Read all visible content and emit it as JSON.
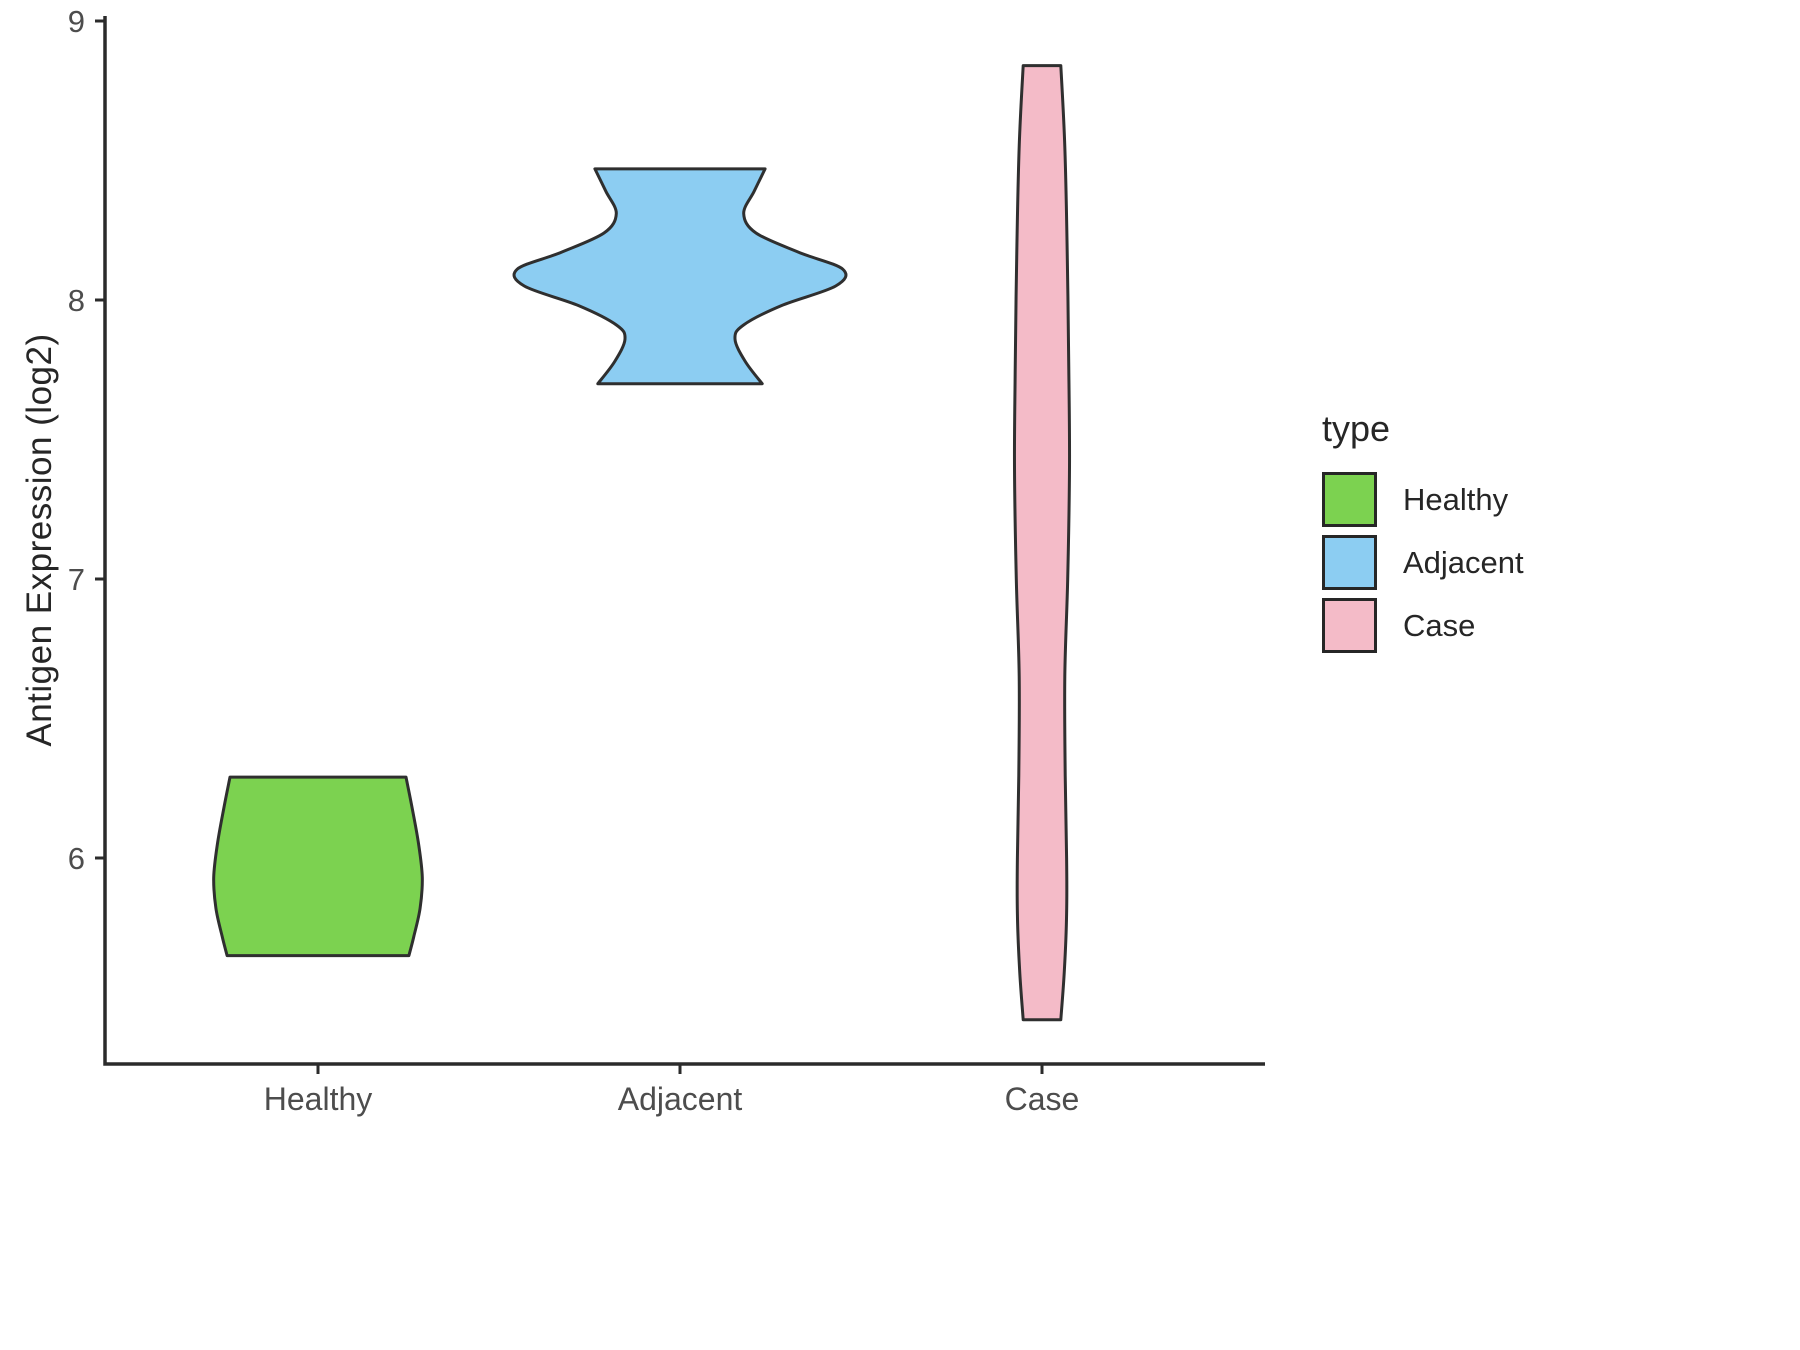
{
  "chart_data": {
    "type": "violin",
    "title": "",
    "xlabel": "",
    "ylabel": "Antigen Expression (log2)",
    "categories": [
      "Healthy",
      "Adjacent",
      "Case"
    ],
    "y_ticks": [
      6,
      7,
      8,
      9
    ],
    "ylim": [
      5.3,
      9.0
    ],
    "grid": false,
    "axis_color": "#2b2b2b",
    "tick_label_color": "#4d4d4d",
    "violin_stroke_color": "#2f2f2f",
    "legend": {
      "title": "type",
      "position": "right"
    },
    "series": [
      {
        "name": "Healthy",
        "color": "#7CD250",
        "y_range": [
          5.65,
          6.29
        ],
        "profile": [
          [
            6.29,
            0.243
          ],
          [
            6.18,
            0.26
          ],
          [
            6.05,
            0.278
          ],
          [
            5.93,
            0.288
          ],
          [
            5.82,
            0.282
          ],
          [
            5.72,
            0.265
          ],
          [
            5.65,
            0.251
          ]
        ]
      },
      {
        "name": "Adjacent",
        "color": "#8CCDF2",
        "y_range": [
          7.7,
          8.47
        ],
        "profile": [
          [
            8.47,
            0.235
          ],
          [
            8.39,
            0.205
          ],
          [
            8.31,
            0.176
          ],
          [
            8.24,
            0.21
          ],
          [
            8.17,
            0.33
          ],
          [
            8.11,
            0.45
          ],
          [
            8.05,
            0.43
          ],
          [
            7.98,
            0.28
          ],
          [
            7.91,
            0.175
          ],
          [
            7.86,
            0.152
          ],
          [
            7.78,
            0.18
          ],
          [
            7.7,
            0.227
          ]
        ]
      },
      {
        "name": "Case",
        "color": "#F4BBC8",
        "y_range": [
          5.42,
          8.84
        ],
        "profile": [
          [
            8.84,
            0.052
          ],
          [
            8.55,
            0.063
          ],
          [
            8.15,
            0.07
          ],
          [
            7.75,
            0.074
          ],
          [
            7.4,
            0.076
          ],
          [
            7.0,
            0.071
          ],
          [
            6.65,
            0.063
          ],
          [
            6.3,
            0.064
          ],
          [
            6.0,
            0.068
          ],
          [
            5.8,
            0.068
          ],
          [
            5.6,
            0.062
          ],
          [
            5.42,
            0.052
          ]
        ]
      }
    ]
  }
}
